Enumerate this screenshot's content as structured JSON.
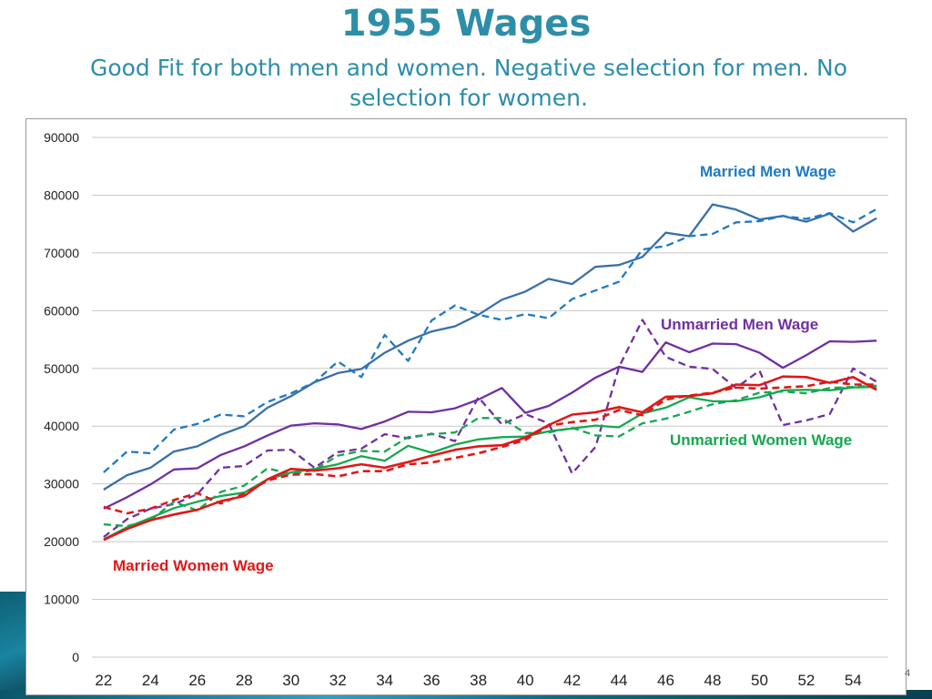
{
  "slide": {
    "title": "1955 Wages",
    "subtitle": "Good Fit for both men and women. Negative selection for men. No selection for women.",
    "page_number": "4"
  },
  "colors": {
    "title": "#2d8ea8",
    "married_men": "#3a6fa8",
    "married_men_label": "#1f7ac2",
    "unmarried_men": "#7030a0",
    "unmarried_women": "#15a850",
    "married_women": "#e01818"
  },
  "chart_data": {
    "type": "line",
    "x": [
      22,
      23,
      24,
      25,
      26,
      27,
      28,
      29,
      30,
      31,
      32,
      33,
      34,
      35,
      36,
      37,
      38,
      39,
      40,
      41,
      42,
      43,
      44,
      45,
      46,
      47,
      48,
      49,
      50,
      51,
      52,
      53,
      54,
      55
    ],
    "x_ticks": [
      "22",
      "24",
      "26",
      "28",
      "30",
      "32",
      "34",
      "36",
      "38",
      "40",
      "42",
      "44",
      "46",
      "48",
      "50",
      "52",
      "54"
    ],
    "y_ticks": [
      "0",
      "10000",
      "20000",
      "30000",
      "40000",
      "50000",
      "60000",
      "70000",
      "80000",
      "90000"
    ],
    "ylim": [
      0,
      90000
    ],
    "grid": true,
    "series": [
      {
        "name": "Married Men Wage",
        "style": "solid",
        "color": "#3a6fa8",
        "values": [
          29000,
          31500,
          32800,
          35600,
          36500,
          38500,
          40000,
          43200,
          45200,
          47600,
          49200,
          49900,
          52700,
          54800,
          56400,
          57300,
          59300,
          61900,
          63300,
          65500,
          64600,
          67600,
          67900,
          69300,
          73500,
          72900,
          78400,
          77500,
          75800,
          76400,
          75400,
          76800,
          73700,
          76000
        ]
      },
      {
        "name": "Married Men Wage (dashed)",
        "style": "dashed",
        "color": "#1f7ac2",
        "values": [
          32000,
          35600,
          35300,
          39400,
          40400,
          42000,
          41700,
          44200,
          45700,
          47600,
          51200,
          48500,
          55800,
          51300,
          58300,
          60900,
          59300,
          58400,
          59400,
          58700,
          62000,
          63500,
          65000,
          70600,
          71200,
          72900,
          73300,
          75300,
          75500,
          76400,
          75900,
          76900,
          75300,
          77600
        ]
      },
      {
        "name": "Unmarried Men Wage",
        "style": "solid",
        "color": "#7030a0",
        "values": [
          25700,
          27700,
          29900,
          32500,
          32700,
          35000,
          36500,
          38400,
          40100,
          40500,
          40300,
          39500,
          40800,
          42500,
          42400,
          43100,
          44600,
          46600,
          42300,
          43500,
          45800,
          48400,
          50300,
          49400,
          54500,
          52800,
          54300,
          54200,
          52700,
          50100,
          52300,
          54700,
          54600,
          54800
        ]
      },
      {
        "name": "Unmarried Men Wage (dashed)",
        "style": "dashed",
        "color": "#7030a0",
        "values": [
          20800,
          23900,
          25700,
          26500,
          28200,
          32800,
          33100,
          35800,
          35900,
          32800,
          35500,
          36100,
          38600,
          37900,
          38700,
          37400,
          45000,
          40300,
          42100,
          40500,
          31800,
          36400,
          50200,
          58400,
          52000,
          50300,
          49900,
          46600,
          49600,
          40200,
          41000,
          42100,
          50000,
          47700
        ]
      },
      {
        "name": "Unmarried Women Wage",
        "style": "solid",
        "color": "#15a850",
        "values": [
          20400,
          22500,
          24100,
          25800,
          26900,
          27900,
          28500,
          30800,
          32000,
          32600,
          33400,
          34800,
          34000,
          36600,
          35400,
          36800,
          37700,
          38100,
          38200,
          39100,
          39600,
          40100,
          39800,
          42200,
          43200,
          45000,
          44300,
          44300,
          45000,
          46200,
          46300,
          46200,
          46700,
          46800
        ]
      },
      {
        "name": "Unmarried Women Wage (dashed)",
        "style": "dashed",
        "color": "#15a850",
        "values": [
          23000,
          22700,
          23700,
          26900,
          25400,
          28600,
          29700,
          32700,
          31700,
          32400,
          34900,
          35700,
          35600,
          38100,
          38600,
          38900,
          41400,
          41400,
          38800,
          38900,
          39700,
          38400,
          38200,
          40500,
          41300,
          42500,
          43800,
          44500,
          45800,
          46000,
          45700,
          46600,
          46800,
          47000
        ]
      },
      {
        "name": "Married Women Wage",
        "style": "solid",
        "color": "#e01818",
        "values": [
          20300,
          22200,
          23700,
          24700,
          25500,
          27000,
          27900,
          30800,
          32600,
          32300,
          32700,
          33400,
          32800,
          33800,
          34900,
          35900,
          36500,
          36700,
          38000,
          40200,
          42000,
          42400,
          43300,
          42400,
          45100,
          45200,
          45700,
          47200,
          47100,
          48600,
          48500,
          47500,
          48500,
          46300
        ]
      },
      {
        "name": "Married Women Wage (dashed)",
        "style": "dashed",
        "color": "#e01818",
        "values": [
          26000,
          24900,
          25700,
          27200,
          28400,
          26600,
          28300,
          30600,
          31600,
          31700,
          31300,
          32200,
          32200,
          33400,
          33700,
          34500,
          35300,
          36400,
          37600,
          40100,
          40700,
          41100,
          42800,
          41900,
          44600,
          45300,
          45800,
          46700,
          46500,
          46700,
          46900,
          47700,
          47200,
          47200
        ]
      }
    ],
    "annotations": [
      {
        "text": "Married Men Wage",
        "color": "#1f7ac2"
      },
      {
        "text": "Unmarried Men Wage",
        "color": "#7030a0"
      },
      {
        "text": "Unmarried Women Wage",
        "color": "#15a850"
      },
      {
        "text": "Married Women Wage",
        "color": "#e01818"
      }
    ]
  }
}
